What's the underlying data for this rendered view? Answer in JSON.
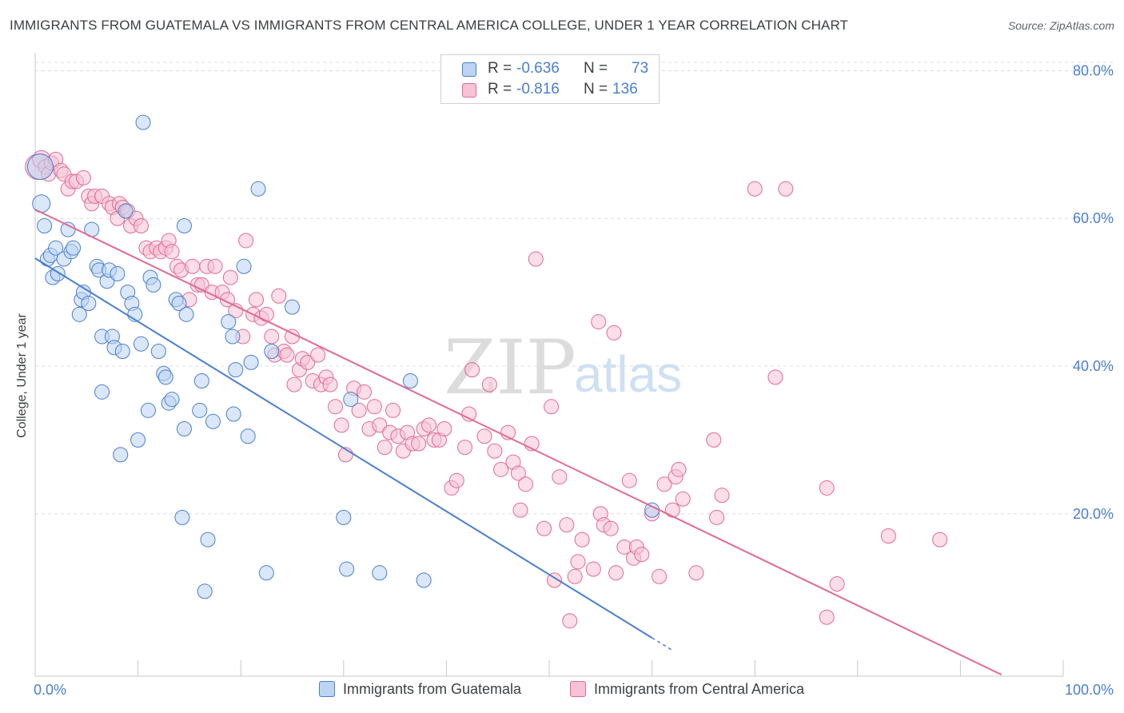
{
  "title": "IMMIGRANTS FROM GUATEMALA VS IMMIGRANTS FROM CENTRAL AMERICA COLLEGE, UNDER 1 YEAR CORRELATION CHART",
  "source": "Source: ZipAtlas.com",
  "watermark": {
    "zip": "ZIP",
    "atlas": "atlas"
  },
  "colors": {
    "blue": "#4a7fd0",
    "blue_fill": "#bcd3f2",
    "pink": "#e06a94",
    "pink_fill": "#f7c2d3",
    "grid": "#d9dce0",
    "axis_label": "#4a7fd0"
  },
  "legend_top": {
    "rows": [
      {
        "r_label": "R =",
        "r_value": "-0.636",
        "n_label": "N =",
        "n_value": "73"
      },
      {
        "r_label": "R =",
        "r_value": "-0.816",
        "n_label": "N =",
        "n_value": "136"
      }
    ]
  },
  "legend_bottom": [
    {
      "label": "Immigrants from Guatemala"
    },
    {
      "label": "Immigrants from Central America"
    }
  ],
  "chart_data": {
    "type": "scatter",
    "xlabel": "",
    "ylabel": "College, Under 1 year",
    "xlim": [
      0,
      100
    ],
    "ylim": [
      -2,
      82
    ],
    "x_tick_labels": [
      {
        "value": 0,
        "label": "0.0%"
      },
      {
        "value": 100,
        "label": "100.0%"
      }
    ],
    "y_tick_labels": [
      {
        "value": 20,
        "label": "20.0%"
      },
      {
        "value": 40,
        "label": "40.0%"
      },
      {
        "value": 60,
        "label": "60.0%"
      },
      {
        "value": 80,
        "label": "80.0%"
      }
    ],
    "grid": true,
    "series": [
      {
        "name": "Immigrants from Guatemala",
        "r": -0.636,
        "n": 73,
        "trend": {
          "x": [
            0,
            60
          ],
          "y": [
            54.6,
            3.2
          ],
          "dashed_to": [
            62,
            1.5
          ]
        },
        "points": [
          [
            0.5,
            67,
            16
          ],
          [
            0.6,
            62,
            11
          ],
          [
            0.9,
            59,
            9
          ],
          [
            1.2,
            54.5,
            9
          ],
          [
            1.5,
            55,
            9
          ],
          [
            1.7,
            52,
            9
          ],
          [
            2,
            56,
            9
          ],
          [
            2.2,
            52.5,
            9
          ],
          [
            2.8,
            54.5,
            9
          ],
          [
            3.2,
            58.5,
            9
          ],
          [
            3.5,
            55.5,
            9
          ],
          [
            3.7,
            56,
            9
          ],
          [
            4.3,
            47,
            9
          ],
          [
            4.5,
            49,
            9
          ],
          [
            4.7,
            50,
            9
          ],
          [
            5.2,
            48.5,
            9
          ],
          [
            5.5,
            58.5,
            9
          ],
          [
            6,
            53.5,
            9
          ],
          [
            6.2,
            53,
            9
          ],
          [
            6.5,
            44,
            9
          ],
          [
            6.5,
            36.5,
            9
          ],
          [
            7,
            51.5,
            9
          ],
          [
            7.2,
            53,
            9
          ],
          [
            7.5,
            44,
            9
          ],
          [
            7.7,
            42.5,
            9
          ],
          [
            8,
            52.5,
            9
          ],
          [
            8.3,
            28,
            9
          ],
          [
            8.5,
            42,
            9
          ],
          [
            8.8,
            61,
            9
          ],
          [
            9,
            50,
            9
          ],
          [
            9.4,
            48.5,
            9
          ],
          [
            9.7,
            47,
            9
          ],
          [
            10,
            30,
            9
          ],
          [
            10.3,
            43,
            9
          ],
          [
            10.5,
            73,
            9
          ],
          [
            11,
            34,
            9
          ],
          [
            11.2,
            52,
            9
          ],
          [
            11.5,
            51,
            9
          ],
          [
            12,
            42,
            9
          ],
          [
            12.5,
            39,
            9
          ],
          [
            12.7,
            38.5,
            9
          ],
          [
            13,
            35,
            9
          ],
          [
            13.3,
            35.5,
            9
          ],
          [
            13.7,
            49,
            9
          ],
          [
            14,
            48.5,
            9
          ],
          [
            14.3,
            19.5,
            9
          ],
          [
            14.5,
            59,
            9
          ],
          [
            14.7,
            47,
            9
          ],
          [
            14.5,
            31.5,
            9
          ],
          [
            16,
            34,
            9
          ],
          [
            16.2,
            38,
            9
          ],
          [
            16.5,
            9.5,
            9
          ],
          [
            16.8,
            16.5,
            9
          ],
          [
            17.3,
            32.5,
            9
          ],
          [
            18.8,
            46,
            9
          ],
          [
            19.2,
            44,
            9
          ],
          [
            19.3,
            33.5,
            9
          ],
          [
            19.5,
            39.5,
            9
          ],
          [
            20.3,
            53.5,
            9
          ],
          [
            20.7,
            30.5,
            9
          ],
          [
            21,
            40.5,
            9
          ],
          [
            21.7,
            64,
            9
          ],
          [
            22.5,
            12,
            9
          ],
          [
            23,
            42,
            9
          ],
          [
            25,
            48,
            9
          ],
          [
            30,
            19.5,
            9
          ],
          [
            30.3,
            12.5,
            9
          ],
          [
            30.7,
            35.5,
            9
          ],
          [
            33.5,
            12,
            9
          ],
          [
            36.5,
            38,
            9
          ],
          [
            37.8,
            11,
            9
          ],
          [
            60,
            20.5,
            9
          ]
        ]
      },
      {
        "name": "Immigrants from Central America",
        "r": -0.816,
        "n": 136,
        "trend": {
          "x": [
            0,
            94
          ],
          "y": [
            61.2,
            -1.8
          ]
        },
        "points": [
          [
            0.3,
            67,
            16
          ],
          [
            0.6,
            68,
            11
          ],
          [
            1,
            67,
            9
          ],
          [
            1.3,
            66,
            9
          ],
          [
            1.6,
            67.5,
            9
          ],
          [
            2,
            68,
            9
          ],
          [
            2.5,
            66.5,
            9
          ],
          [
            2.8,
            66,
            9
          ],
          [
            3.2,
            64,
            9
          ],
          [
            3.6,
            65,
            9
          ],
          [
            4,
            65,
            9
          ],
          [
            4.7,
            65.5,
            9
          ],
          [
            5.2,
            63,
            9
          ],
          [
            5.5,
            62,
            9
          ],
          [
            5.8,
            63,
            9
          ],
          [
            6.5,
            63,
            9
          ],
          [
            7.2,
            62,
            9
          ],
          [
            7.5,
            61.5,
            9
          ],
          [
            8,
            60,
            9
          ],
          [
            8.2,
            62,
            9
          ],
          [
            8.5,
            61.5,
            9
          ],
          [
            9,
            61,
            9
          ],
          [
            9.3,
            59,
            9
          ],
          [
            9.8,
            60,
            9
          ],
          [
            10.3,
            59,
            9
          ],
          [
            10.8,
            56,
            9
          ],
          [
            11.2,
            55.5,
            9
          ],
          [
            11.8,
            56,
            9
          ],
          [
            12.2,
            55.5,
            9
          ],
          [
            12.7,
            56,
            9
          ],
          [
            13,
            57,
            9
          ],
          [
            13.3,
            55.5,
            9
          ],
          [
            13.8,
            53.5,
            9
          ],
          [
            14.2,
            53,
            9
          ],
          [
            15,
            49,
            9
          ],
          [
            15.3,
            53.5,
            9
          ],
          [
            15.8,
            51,
            9
          ],
          [
            16.2,
            51,
            9
          ],
          [
            16.7,
            53.5,
            9
          ],
          [
            17.2,
            50,
            9
          ],
          [
            17.5,
            53.5,
            9
          ],
          [
            18.2,
            50,
            9
          ],
          [
            18.7,
            49,
            9
          ],
          [
            19,
            52,
            9
          ],
          [
            19.5,
            47.5,
            9
          ],
          [
            20.2,
            44,
            9
          ],
          [
            20.5,
            57,
            9
          ],
          [
            21.2,
            47,
            9
          ],
          [
            21.5,
            49,
            9
          ],
          [
            22,
            46.5,
            9
          ],
          [
            22.5,
            47,
            9
          ],
          [
            23,
            44,
            9
          ],
          [
            23.3,
            41.5,
            9
          ],
          [
            23.7,
            49.5,
            9
          ],
          [
            24.2,
            42,
            9
          ],
          [
            24.5,
            41.5,
            9
          ],
          [
            25,
            44,
            9
          ],
          [
            25.2,
            37.5,
            9
          ],
          [
            25.7,
            39.5,
            9
          ],
          [
            26,
            41,
            9
          ],
          [
            26.5,
            40.5,
            9
          ],
          [
            27,
            38,
            9
          ],
          [
            27.5,
            41.5,
            9
          ],
          [
            27.8,
            37.5,
            9
          ],
          [
            28.3,
            38.5,
            9
          ],
          [
            28.7,
            37.5,
            9
          ],
          [
            29.2,
            34.5,
            9
          ],
          [
            29.8,
            32,
            9
          ],
          [
            30.2,
            28,
            9
          ],
          [
            31,
            37,
            9
          ],
          [
            31.5,
            34,
            9
          ],
          [
            32,
            36.5,
            9
          ],
          [
            32.5,
            31.5,
            9
          ],
          [
            33,
            34.5,
            9
          ],
          [
            33.5,
            32,
            9
          ],
          [
            34,
            29,
            9
          ],
          [
            34.5,
            31,
            9
          ],
          [
            34.8,
            34,
            9
          ],
          [
            35.3,
            30.5,
            9
          ],
          [
            35.8,
            28.5,
            9
          ],
          [
            36.2,
            31,
            9
          ],
          [
            36.7,
            29.5,
            9
          ],
          [
            37.3,
            29.5,
            9
          ],
          [
            37.8,
            31.5,
            9
          ],
          [
            38.3,
            32,
            9
          ],
          [
            38.8,
            30,
            9
          ],
          [
            39.3,
            30,
            9
          ],
          [
            39.8,
            31.5,
            9
          ],
          [
            40.5,
            23.5,
            9
          ],
          [
            41,
            24.5,
            9
          ],
          [
            41.8,
            29,
            9
          ],
          [
            42.2,
            33.5,
            9
          ],
          [
            42.5,
            39.5,
            9
          ],
          [
            43.7,
            30.5,
            9
          ],
          [
            44.2,
            37.5,
            9
          ],
          [
            44.7,
            28.5,
            9
          ],
          [
            45.3,
            26,
            9
          ],
          [
            46,
            31,
            9
          ],
          [
            46.5,
            27,
            9
          ],
          [
            47,
            25.5,
            9
          ],
          [
            47.2,
            20.5,
            9
          ],
          [
            47.7,
            24,
            9
          ],
          [
            48.3,
            29.5,
            9
          ],
          [
            48.7,
            54.5,
            9
          ],
          [
            49.5,
            18,
            9
          ],
          [
            50.2,
            34.5,
            9
          ],
          [
            50.5,
            11,
            9
          ],
          [
            51,
            25,
            9
          ],
          [
            51.7,
            18.5,
            9
          ],
          [
            52,
            5.5,
            9
          ],
          [
            52.5,
            11.5,
            9
          ],
          [
            52.8,
            13.5,
            9
          ],
          [
            53.2,
            16.5,
            9
          ],
          [
            54.3,
            12.5,
            9
          ],
          [
            54.8,
            46,
            9
          ],
          [
            55,
            20,
            9
          ],
          [
            55.3,
            18.5,
            9
          ],
          [
            56,
            18,
            9
          ],
          [
            56.3,
            44.5,
            9
          ],
          [
            56.5,
            12,
            9
          ],
          [
            57.3,
            15.5,
            9
          ],
          [
            57.8,
            24.5,
            9
          ],
          [
            58.2,
            14,
            9
          ],
          [
            58.5,
            15.5,
            9
          ],
          [
            59,
            14.5,
            9
          ],
          [
            60,
            20,
            9
          ],
          [
            60.7,
            11.5,
            9
          ],
          [
            61.2,
            24,
            9
          ],
          [
            62,
            20.5,
            9
          ],
          [
            62.3,
            25,
            9
          ],
          [
            62.6,
            26,
            9
          ],
          [
            63,
            22,
            9
          ],
          [
            64.3,
            12,
            9
          ],
          [
            66,
            30,
            9
          ],
          [
            66.3,
            19.5,
            9
          ],
          [
            66.8,
            22.5,
            9
          ],
          [
            70,
            64,
            9
          ],
          [
            72,
            38.5,
            9
          ],
          [
            73,
            64,
            9
          ],
          [
            77,
            6,
            9
          ],
          [
            77,
            23.5,
            9
          ],
          [
            78,
            10.5,
            9
          ],
          [
            83,
            17,
            9
          ],
          [
            88,
            16.5,
            9
          ]
        ]
      }
    ]
  }
}
